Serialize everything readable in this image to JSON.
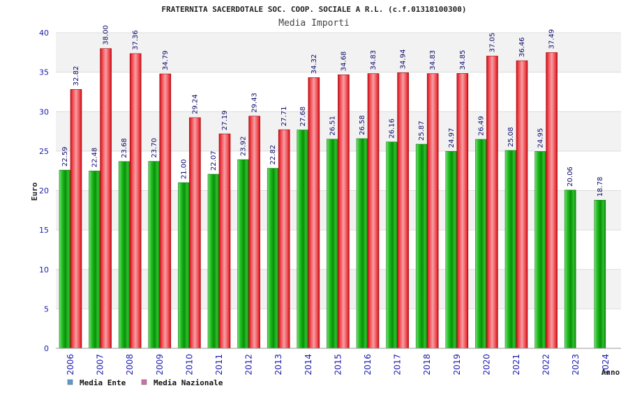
{
  "chart_data": {
    "type": "bar",
    "title": "FRATERNITA SACERDOTALE SOC. COOP. SOCIALE A R.L. (c.f.01318100300)",
    "subtitle": "Media Importi",
    "xlabel": "Anno",
    "ylabel": "Euro",
    "ylim": [
      0,
      40
    ],
    "yticks": [
      0,
      5,
      10,
      15,
      20,
      25,
      30,
      35,
      40
    ],
    "grid": true,
    "legend_position": "bottom-left",
    "categories": [
      "2006",
      "2007",
      "2008",
      "2009",
      "2010",
      "2011",
      "2012",
      "2013",
      "2014",
      "2015",
      "2016",
      "2017",
      "2018",
      "2019",
      "2020",
      "2021",
      "2022",
      "2023",
      "2024"
    ],
    "series": [
      {
        "name": "Media Ente",
        "legend_color": "#5b9bd5",
        "bar_color": "#11aa11",
        "values": [
          22.59,
          22.48,
          23.68,
          23.7,
          21.0,
          22.07,
          23.92,
          22.82,
          27.68,
          26.51,
          26.58,
          26.16,
          25.87,
          24.97,
          26.49,
          25.08,
          24.95,
          20.06,
          18.78
        ],
        "labels": [
          "22.59",
          "22.48",
          "23.68",
          "23.70",
          "21.00",
          "22.07",
          "23.92",
          "22.82",
          "27.68",
          "26.51",
          "26.58",
          "26.16",
          "25.87",
          "24.97",
          "26.49",
          "25.08",
          "24.95",
          "20.06",
          "18.78"
        ]
      },
      {
        "name": "Media Nazionale",
        "legend_color": "#d070a8",
        "bar_color": "#e0202a",
        "values": [
          32.82,
          38.0,
          37.36,
          34.79,
          29.24,
          27.19,
          29.43,
          27.71,
          34.32,
          34.68,
          34.83,
          34.94,
          34.83,
          34.85,
          37.05,
          36.46,
          37.49,
          null,
          null
        ],
        "labels": [
          "32.82",
          "38.00",
          "37.36",
          "34.79",
          "29.24",
          "27.19",
          "29.43",
          "27.71",
          "34.32",
          "34.68",
          "34.83",
          "34.94",
          "34.83",
          "34.85",
          "37.05",
          "36.46",
          "37.49",
          null,
          null
        ]
      }
    ]
  }
}
